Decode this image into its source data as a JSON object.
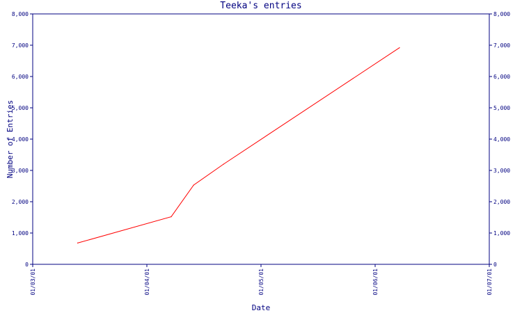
{
  "chart_data": {
    "type": "line",
    "title": "Teeka's entries",
    "xlabel": "Date",
    "ylabel": "Number of Entries",
    "x_ticks": [
      "01/03/01",
      "01/04/01",
      "01/05/01",
      "01/06/01",
      "01/07/01"
    ],
    "y_ticks": [
      "0",
      "1,000",
      "2,000",
      "3,000",
      "4,000",
      "5,000",
      "6,000",
      "7,000",
      "8,000"
    ],
    "ylim": [
      0,
      8000
    ],
    "xlim": [
      "2001-03-01",
      "2001-07-01"
    ],
    "series": [
      {
        "color": "#ff0000",
        "points": [
          {
            "x": "2001-03-13",
            "y": 680
          },
          {
            "x": "2001-04-07",
            "y": 1520
          },
          {
            "x": "2001-04-13",
            "y": 2530
          },
          {
            "x": "2001-04-21",
            "y": 3200
          },
          {
            "x": "2001-06-07",
            "y": 6920
          }
        ]
      }
    ],
    "axis_color": "#000080",
    "grid": false
  }
}
